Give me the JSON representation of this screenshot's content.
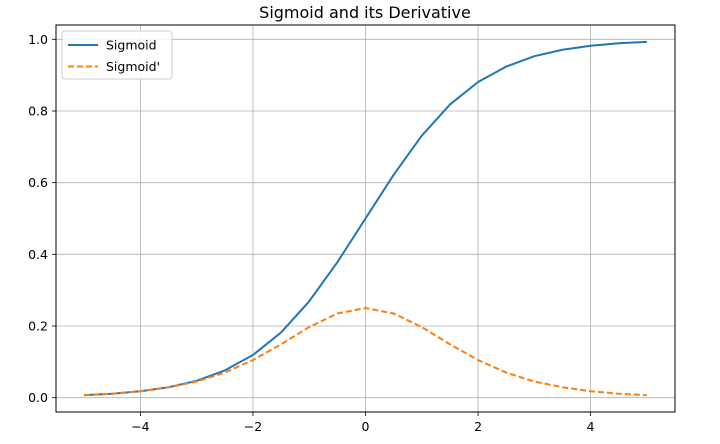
{
  "chart_data": {
    "type": "line",
    "title": "Sigmoid and its Derivative",
    "xlabel": "",
    "ylabel": "",
    "xlim": [
      -5.5,
      5.5
    ],
    "ylim": [
      -0.04,
      1.04
    ],
    "x_ticks": [
      -4,
      -2,
      0,
      2,
      4
    ],
    "x_tick_labels": [
      "−4",
      "−2",
      "0",
      "2",
      "4"
    ],
    "y_ticks": [
      0.0,
      0.2,
      0.4,
      0.6,
      0.8,
      1.0
    ],
    "y_tick_labels": [
      "0.0",
      "0.2",
      "0.4",
      "0.6",
      "0.8",
      "1.0"
    ],
    "grid": true,
    "legend_position": "upper-left",
    "x": [
      -5,
      -4.5,
      -4,
      -3.5,
      -3,
      -2.5,
      -2,
      -1.5,
      -1,
      -0.5,
      0,
      0.5,
      1,
      1.5,
      2,
      2.5,
      3,
      3.5,
      4,
      4.5,
      5
    ],
    "series": [
      {
        "name": "Sigmoid",
        "color": "#1f77b4",
        "style": "solid",
        "values": [
          0.007,
          0.011,
          0.018,
          0.029,
          0.047,
          0.076,
          0.119,
          0.182,
          0.269,
          0.378,
          0.5,
          0.622,
          0.731,
          0.818,
          0.881,
          0.924,
          0.953,
          0.971,
          0.982,
          0.989,
          0.993
        ]
      },
      {
        "name": "Sigmoid'",
        "color": "#ff7f0e",
        "style": "dashed",
        "values": [
          0.007,
          0.011,
          0.018,
          0.029,
          0.045,
          0.07,
          0.105,
          0.149,
          0.197,
          0.235,
          0.25,
          0.235,
          0.197,
          0.149,
          0.105,
          0.07,
          0.045,
          0.029,
          0.018,
          0.011,
          0.007
        ]
      }
    ]
  }
}
